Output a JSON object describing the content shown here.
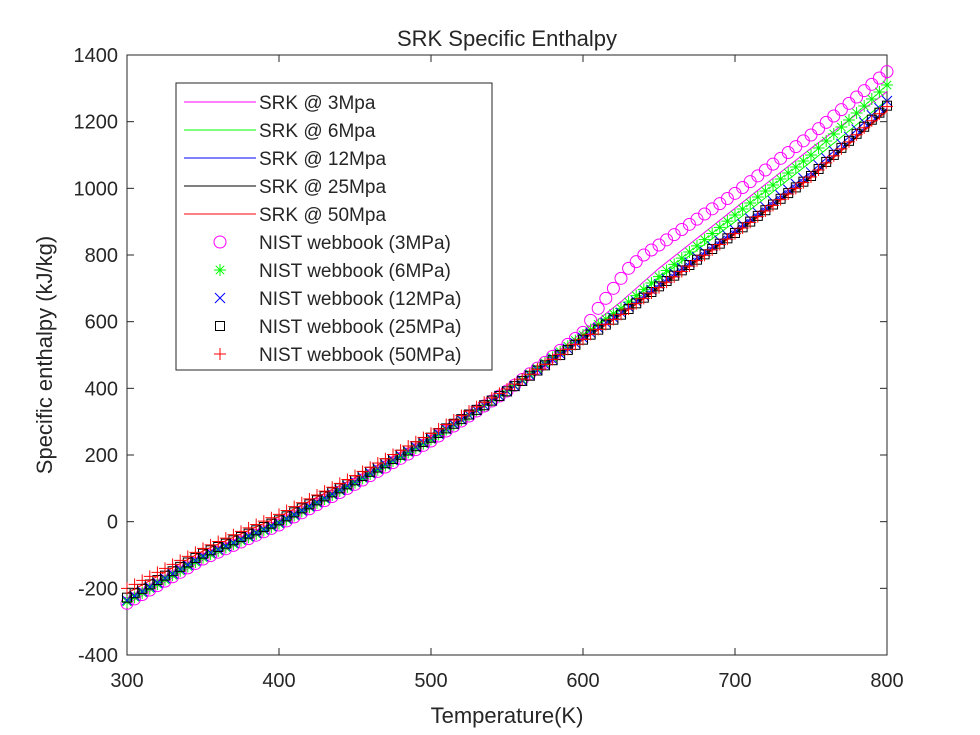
{
  "chart_data": {
    "type": "line",
    "title": "SRK Specific Enthalpy",
    "xlabel": "Temperature(K)",
    "ylabel": "Specific enthalpy (kJ/kg)",
    "xlim": [
      300,
      800
    ],
    "ylim": [
      -400,
      1400
    ],
    "xticks": [
      300,
      400,
      500,
      600,
      700,
      800
    ],
    "yticks": [
      -400,
      -200,
      0,
      200,
      400,
      600,
      800,
      1000,
      1200,
      1400
    ],
    "grid": false,
    "legend_position": "top-left",
    "series": [
      {
        "name": "SRK @ 3Mpa",
        "kind": "line",
        "color": "#ff00ff",
        "x": [
          300,
          350,
          400,
          450,
          500,
          550,
          575,
          600,
          625,
          650,
          700,
          750,
          800
        ],
        "y": [
          -248,
          -115,
          -12,
          110,
          240,
          390,
          480,
          570,
          660,
          760,
          940,
          1120,
          1290
        ]
      },
      {
        "name": "SRK @ 6Mpa",
        "kind": "line",
        "color": "#00ff00",
        "x": [
          300,
          350,
          400,
          450,
          500,
          550,
          575,
          600,
          625,
          650,
          700,
          750,
          800
        ],
        "y": [
          -243,
          -110,
          -8,
          115,
          245,
          390,
          475,
          560,
          640,
          730,
          900,
          1080,
          1265
        ]
      },
      {
        "name": "SRK @ 12Mpa",
        "kind": "line",
        "color": "#0000ff",
        "x": [
          300,
          350,
          400,
          450,
          500,
          550,
          575,
          600,
          625,
          650,
          700,
          750,
          800
        ],
        "y": [
          -238,
          -105,
          -5,
          118,
          248,
          390,
          470,
          550,
          625,
          710,
          870,
          1040,
          1240
        ]
      },
      {
        "name": "SRK @ 25Mpa",
        "kind": "line",
        "color": "#000000",
        "x": [
          300,
          350,
          400,
          450,
          500,
          550,
          575,
          600,
          625,
          650,
          700,
          750,
          800
        ],
        "y": [
          -230,
          -98,
          2,
          122,
          250,
          390,
          468,
          545,
          620,
          705,
          865,
          1035,
          1235
        ]
      },
      {
        "name": "SRK @ 50Mpa",
        "kind": "line",
        "color": "#ff0000",
        "x": [
          300,
          350,
          400,
          450,
          500,
          550,
          575,
          600,
          625,
          650,
          700,
          750,
          800
        ],
        "y": [
          -215,
          -88,
          15,
          132,
          258,
          395,
          470,
          545,
          620,
          700,
          862,
          1032,
          1232
        ]
      },
      {
        "name": "NIST webbook (3MPa)",
        "kind": "marker",
        "marker": "circle",
        "color": "#ff00ff",
        "x": [
          300,
          350,
          400,
          450,
          500,
          550,
          575,
          600,
          610,
          620,
          630,
          640,
          650,
          700,
          750,
          800
        ],
        "y": [
          -245,
          -112,
          -10,
          112,
          242,
          392,
          478,
          568,
          640,
          700,
          760,
          800,
          830,
          985,
          1160,
          1350
        ]
      },
      {
        "name": "NIST webbook (6MPa)",
        "kind": "marker",
        "marker": "asterisk",
        "color": "#00ff00",
        "x": [
          300,
          350,
          400,
          450,
          500,
          550,
          575,
          600,
          625,
          650,
          700,
          750,
          800
        ],
        "y": [
          -240,
          -108,
          -6,
          117,
          247,
          392,
          476,
          560,
          640,
          735,
          920,
          1100,
          1310
        ]
      },
      {
        "name": "NIST webbook (12MPa)",
        "kind": "marker",
        "marker": "x",
        "color": "#0000ff",
        "x": [
          300,
          350,
          400,
          450,
          500,
          550,
          575,
          600,
          625,
          650,
          700,
          750,
          800
        ],
        "y": [
          -236,
          -103,
          -3,
          120,
          250,
          391,
          471,
          551,
          627,
          712,
          875,
          1048,
          1262
        ]
      },
      {
        "name": "NIST webbook (25MPa)",
        "kind": "marker",
        "marker": "square",
        "color": "#000000",
        "x": [
          300,
          350,
          400,
          450,
          500,
          550,
          575,
          600,
          625,
          650,
          700,
          750,
          800
        ],
        "y": [
          -228,
          -96,
          4,
          124,
          252,
          391,
          469,
          546,
          621,
          706,
          866,
          1037,
          1248
        ]
      },
      {
        "name": "NIST webbook (50MPa)",
        "kind": "marker",
        "marker": "plus",
        "color": "#ff0000",
        "x": [
          300,
          350,
          400,
          450,
          500,
          550,
          575,
          600,
          625,
          650,
          700,
          750,
          800
        ],
        "y": [
          -200,
          -80,
          22,
          138,
          265,
          398,
          472,
          547,
          622,
          702,
          864,
          1034,
          1245
        ]
      }
    ]
  }
}
